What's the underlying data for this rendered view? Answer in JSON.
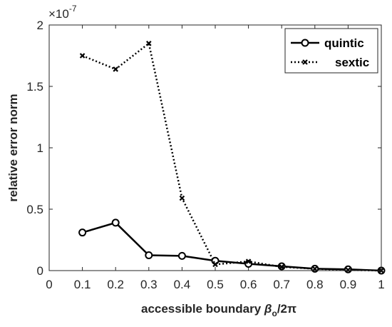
{
  "chart_data": {
    "type": "line",
    "xlabel": "accessible boundary",
    "xlabel_symbol": "β",
    "xlabel_subscript": "o",
    "xlabel_suffix": "/2π",
    "ylabel": "relative error norm",
    "exponent_label": "×10",
    "exponent_power": "-7",
    "xlim": [
      0,
      1
    ],
    "ylim": [
      0,
      2
    ],
    "x_ticks": [
      "0",
      "0.1",
      "0.2",
      "0.3",
      "0.4",
      "0.5",
      "0.6",
      "0.7",
      "0.8",
      "0.9",
      "1"
    ],
    "y_ticks": [
      "0",
      "0.5",
      "1",
      "1.5",
      "2"
    ],
    "legend_position": "top-right",
    "series": [
      {
        "name": "quintic",
        "line_style": "solid",
        "marker": "circle",
        "color": "#000000",
        "x": [
          0.1,
          0.2,
          0.3,
          0.4,
          0.5,
          0.6,
          0.7,
          0.8,
          0.9,
          1.0
        ],
        "y": [
          0.31,
          0.39,
          0.125,
          0.12,
          0.08,
          0.055,
          0.035,
          0.015,
          0.01,
          0.0
        ]
      },
      {
        "name": "sextic",
        "line_style": "dotted",
        "marker": "x",
        "color": "#000000",
        "x": [
          0.1,
          0.2,
          0.3,
          0.4,
          0.5,
          0.6,
          0.7,
          0.8,
          0.9,
          1.0
        ],
        "y": [
          1.75,
          1.64,
          1.85,
          0.59,
          0.05,
          0.075,
          0.03,
          0.015,
          0.005,
          0.0
        ]
      }
    ]
  }
}
